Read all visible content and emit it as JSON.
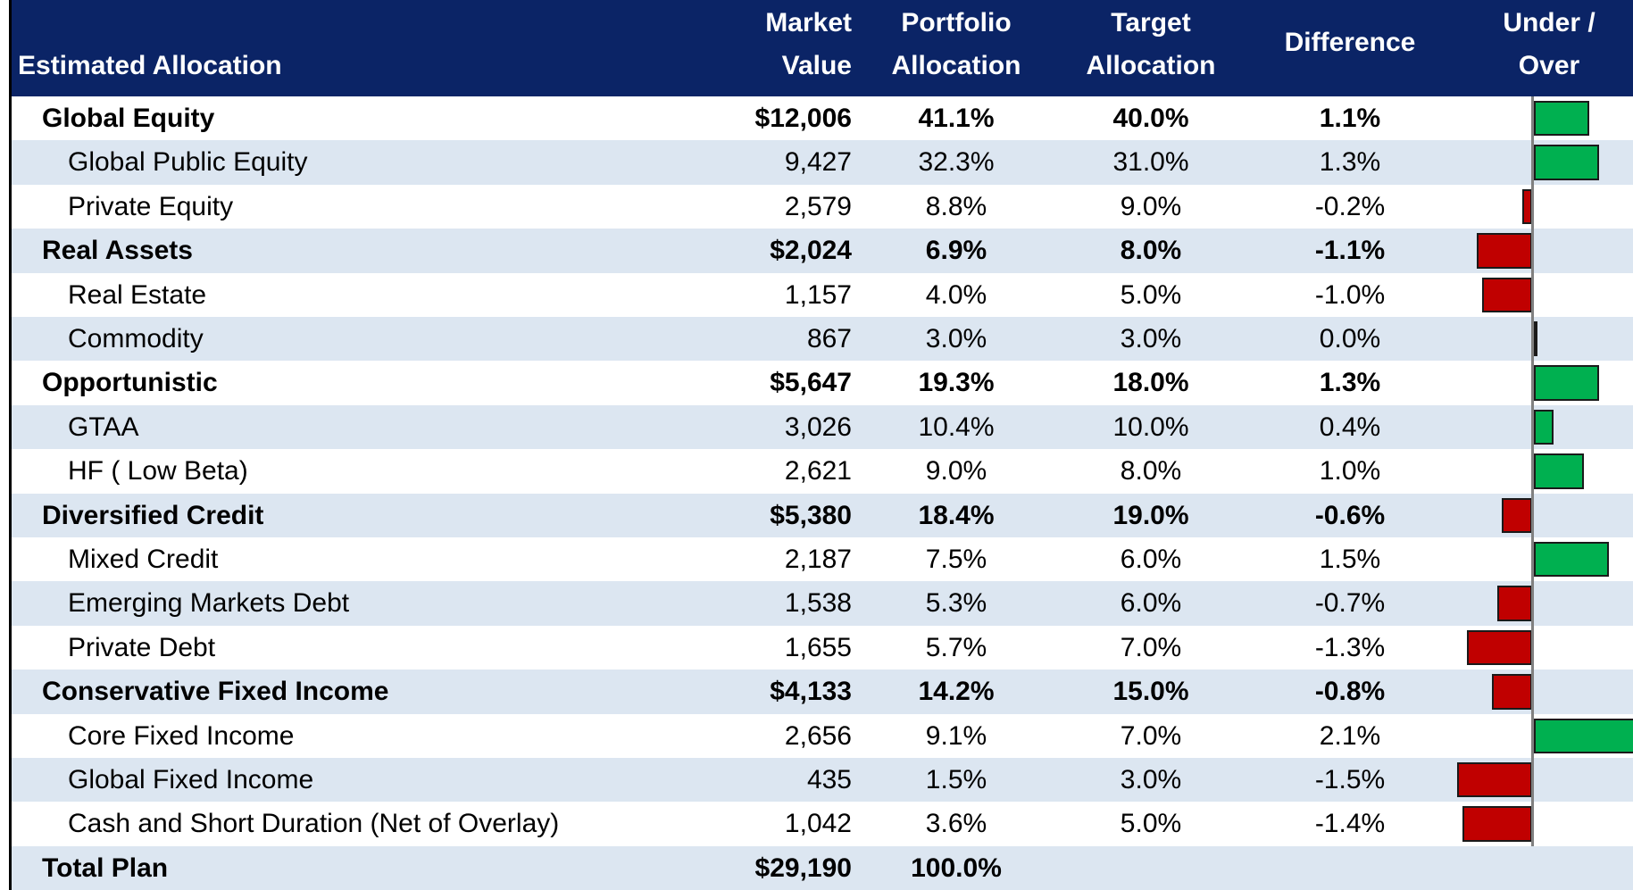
{
  "table": {
    "headers": [
      [
        "Estimated Allocation"
      ],
      [
        "Market",
        "Value"
      ],
      [
        "Portfolio",
        "Allocation"
      ],
      [
        "Target",
        "Allocation"
      ],
      [
        "Difference"
      ],
      [
        "Under /",
        "Over"
      ]
    ],
    "rows": [
      {
        "name": "Global Equity",
        "bold": true,
        "market_value": "$12,006",
        "portfolio": "41.1%",
        "target": "40.0%",
        "difference": {
          "value": 1.1,
          "label": "1.1%"
        }
      },
      {
        "name": "Global Public Equity",
        "bold": false,
        "market_value": "9,427",
        "portfolio": "32.3%",
        "target": "31.0%",
        "difference": {
          "value": 1.3,
          "label": "1.3%"
        }
      },
      {
        "name": "Private Equity",
        "bold": false,
        "market_value": "2,579",
        "portfolio": "8.8%",
        "target": "9.0%",
        "difference": {
          "value": -0.2,
          "label": "-0.2%"
        }
      },
      {
        "name": "Real Assets",
        "bold": true,
        "market_value": "$2,024",
        "portfolio": "6.9%",
        "target": "8.0%",
        "difference": {
          "value": -1.1,
          "label": "-1.1%"
        }
      },
      {
        "name": "Real Estate",
        "bold": false,
        "market_value": "1,157",
        "portfolio": "4.0%",
        "target": "5.0%",
        "difference": {
          "value": -1.0,
          "label": "-1.0%"
        }
      },
      {
        "name": "Commodity",
        "bold": false,
        "market_value": "867",
        "portfolio": "3.0%",
        "target": "3.0%",
        "difference": {
          "value": 0.0,
          "label": "0.0%"
        }
      },
      {
        "name": "Opportunistic",
        "bold": true,
        "market_value": "$5,647",
        "portfolio": "19.3%",
        "target": "18.0%",
        "difference": {
          "value": 1.3,
          "label": "1.3%"
        }
      },
      {
        "name": "GTAA",
        "bold": false,
        "market_value": "3,026",
        "portfolio": "10.4%",
        "target": "10.0%",
        "difference": {
          "value": 0.4,
          "label": "0.4%"
        }
      },
      {
        "name": "HF ( Low Beta)",
        "bold": false,
        "market_value": "2,621",
        "portfolio": "9.0%",
        "target": "8.0%",
        "difference": {
          "value": 1.0,
          "label": "1.0%"
        }
      },
      {
        "name": "Diversified Credit",
        "bold": true,
        "market_value": "$5,380",
        "portfolio": "18.4%",
        "target": "19.0%",
        "difference": {
          "value": -0.6,
          "label": "-0.6%"
        }
      },
      {
        "name": "Mixed Credit",
        "bold": false,
        "market_value": "2,187",
        "portfolio": "7.5%",
        "target": "6.0%",
        "difference": {
          "value": 1.5,
          "label": "1.5%"
        }
      },
      {
        "name": "Emerging Markets Debt",
        "bold": false,
        "market_value": "1,538",
        "portfolio": "5.3%",
        "target": "6.0%",
        "difference": {
          "value": -0.7,
          "label": "-0.7%"
        }
      },
      {
        "name": "Private Debt",
        "bold": false,
        "market_value": "1,655",
        "portfolio": "5.7%",
        "target": "7.0%",
        "difference": {
          "value": -1.3,
          "label": "-1.3%"
        }
      },
      {
        "name": "Conservative Fixed Income",
        "bold": true,
        "market_value": "$4,133",
        "portfolio": "14.2%",
        "target": "15.0%",
        "difference": {
          "value": -0.8,
          "label": "-0.8%"
        }
      },
      {
        "name": "Core Fixed Income",
        "bold": false,
        "market_value": "2,656",
        "portfolio": "9.1%",
        "target": "7.0%",
        "difference": {
          "value": 2.1,
          "label": "2.1%"
        }
      },
      {
        "name": "Global Fixed Income",
        "bold": false,
        "market_value": "435",
        "portfolio": "1.5%",
        "target": "3.0%",
        "difference": {
          "value": -1.5,
          "label": "-1.5%"
        }
      },
      {
        "name": "Cash and Short Duration (Net of Overlay)",
        "bold": false,
        "market_value": "1,042",
        "portfolio": "3.6%",
        "target": "5.0%",
        "difference": {
          "value": -1.4,
          "label": "-1.4%"
        }
      },
      {
        "name": "Total Plan",
        "bold": true,
        "market_value": "$29,190",
        "portfolio": "100.0%"
      }
    ]
  }
}
